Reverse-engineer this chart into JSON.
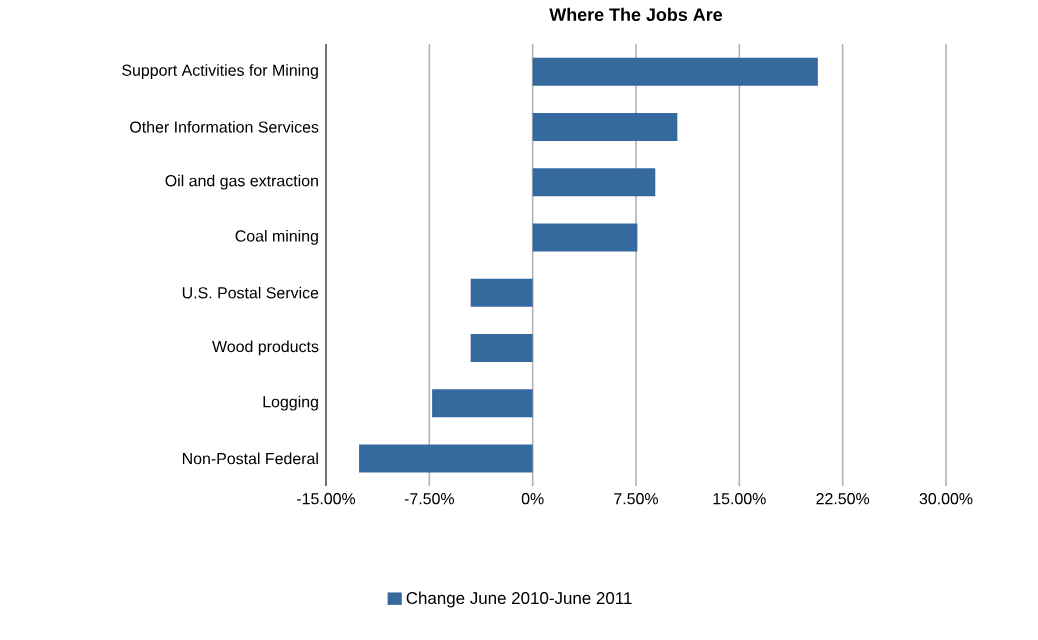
{
  "chart_data": {
    "type": "bar",
    "orientation": "horizontal",
    "title": "Where The Jobs Are",
    "categories": [
      "Support Activities for Mining",
      "Other Information Services",
      "Oil and gas extraction",
      "Coal mining",
      "U.S. Postal Service",
      "Wood products",
      "Logging",
      "Non-Postal Federal"
    ],
    "series": [
      {
        "name": "Change June 2010-June 2011",
        "color": "#356a9f",
        "values": [
          20.7,
          10.5,
          8.9,
          7.6,
          -4.5,
          -4.5,
          -7.3,
          -12.6
        ]
      }
    ],
    "xlim": [
      -15,
      30
    ],
    "xticks": [
      {
        "value": -15,
        "label": "-15.00%"
      },
      {
        "value": -7.5,
        "label": "-7.50%"
      },
      {
        "value": 0,
        "label": "0%"
      },
      {
        "value": 7.5,
        "label": "7.50%"
      },
      {
        "value": 15,
        "label": "15.00%"
      },
      {
        "value": 22.5,
        "label": "22.50%"
      },
      {
        "value": 30,
        "label": "30.00%"
      }
    ],
    "grid": "x",
    "legend": "bottom"
  }
}
